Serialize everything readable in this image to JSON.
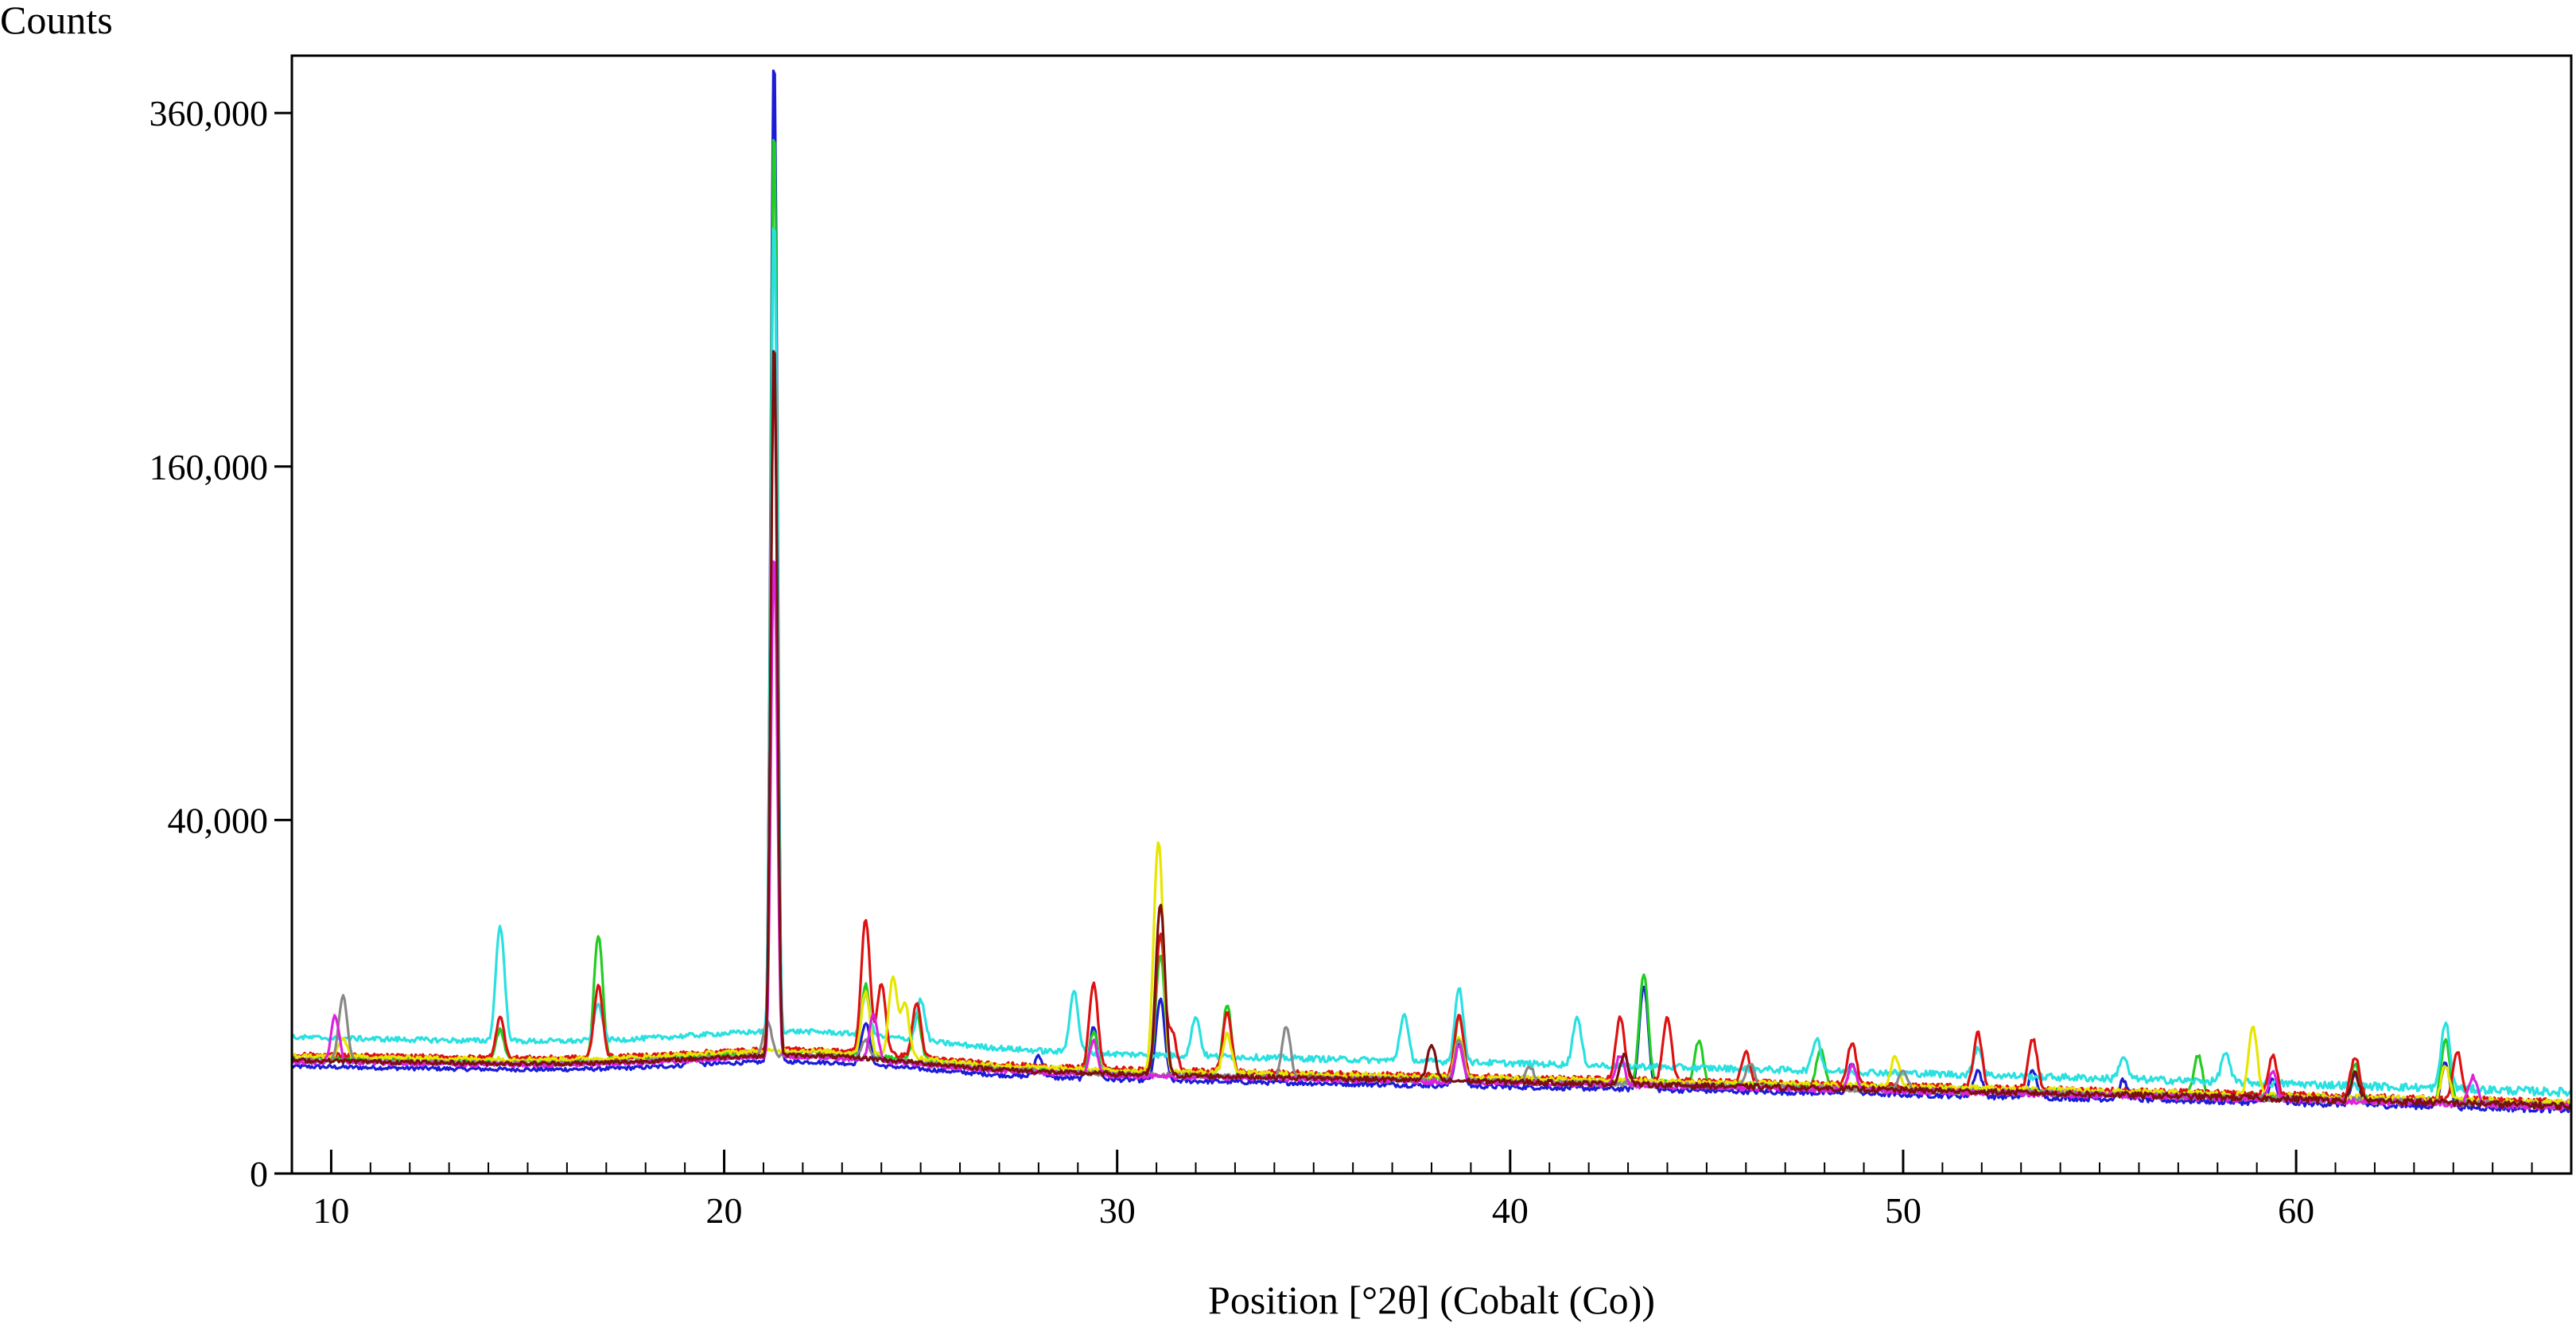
{
  "chart_data": {
    "type": "line",
    "title": "",
    "xlabel": "Position [°2θ] (Cobalt (Co))",
    "ylabel": "Counts",
    "xlim": [
      9,
      67
    ],
    "ylim": [
      0,
      400000
    ],
    "y_scale": "sqrt",
    "grid": false,
    "legend": "none",
    "x_ticks": [
      {
        "value": 10,
        "label": "10"
      },
      {
        "value": 20,
        "label": "20"
      },
      {
        "value": 30,
        "label": "30"
      },
      {
        "value": 40,
        "label": "40"
      },
      {
        "value": 50,
        "label": "50"
      },
      {
        "value": 60,
        "label": "60"
      }
    ],
    "y_ticks": [
      {
        "value": 0,
        "label": "0"
      },
      {
        "value": 40000,
        "label": "40,000"
      },
      {
        "value": 160000,
        "label": "160,000"
      },
      {
        "value": 360000,
        "label": "360,000"
      }
    ],
    "series": [
      {
        "color": "#1c1cd6",
        "baseline": 3400,
        "peaks": [
          [
            19.2,
            900
          ],
          [
            21.27,
            400000
          ],
          [
            23.6,
            3500
          ],
          [
            28.0,
            1500
          ],
          [
            29.4,
            4000
          ],
          [
            31.1,
            7000
          ],
          [
            38.7,
            3000
          ],
          [
            43.4,
            9000
          ],
          [
            48.7,
            1800
          ],
          [
            51.9,
            1500
          ],
          [
            53.3,
            1500
          ],
          [
            55.6,
            1000
          ],
          [
            59.4,
            1200
          ],
          [
            61.5,
            1500
          ],
          [
            63.8,
            2500
          ]
        ]
      },
      {
        "color": "#22cc22",
        "baseline": 4000,
        "peaks": [
          [
            14.3,
            2500
          ],
          [
            16.8,
            14000
          ],
          [
            21.27,
            350000
          ],
          [
            23.6,
            7000
          ],
          [
            24.9,
            4000
          ],
          [
            29.4,
            3000
          ],
          [
            31.1,
            12000
          ],
          [
            32.8,
            6000
          ],
          [
            38.7,
            5000
          ],
          [
            43.4,
            10000
          ],
          [
            44.8,
            3000
          ],
          [
            47.9,
            2500
          ],
          [
            57.5,
            2500
          ],
          [
            61.5,
            2000
          ],
          [
            63.8,
            4000
          ]
        ]
      },
      {
        "color": "#2ae0e0",
        "baseline": 5500,
        "peaks": [
          [
            14.3,
            14000
          ],
          [
            16.8,
            3500
          ],
          [
            21.27,
            290000
          ],
          [
            23.6,
            4000
          ],
          [
            25.0,
            4000
          ],
          [
            28.9,
            6000
          ],
          [
            32.0,
            3500
          ],
          [
            37.3,
            4000
          ],
          [
            38.7,
            7000
          ],
          [
            41.7,
            4000
          ],
          [
            47.8,
            2500
          ],
          [
            51.9,
            2000
          ],
          [
            55.6,
            1500
          ],
          [
            58.2,
            2000
          ],
          [
            63.8,
            5000
          ]
        ]
      },
      {
        "color": "#dd1111",
        "baseline": 4200,
        "peaks": [
          [
            14.3,
            3500
          ],
          [
            16.8,
            7000
          ],
          [
            21.27,
            210000
          ],
          [
            23.6,
            16000
          ],
          [
            24.0,
            7000
          ],
          [
            24.9,
            5000
          ],
          [
            29.4,
            8000
          ],
          [
            31.1,
            15000
          ],
          [
            31.4,
            3000
          ],
          [
            32.8,
            5000
          ],
          [
            38.7,
            5000
          ],
          [
            42.8,
            5000
          ],
          [
            44.0,
            5000
          ],
          [
            46.0,
            2000
          ],
          [
            48.7,
            3000
          ],
          [
            51.9,
            4000
          ],
          [
            53.3,
            3500
          ],
          [
            59.4,
            2500
          ],
          [
            61.5,
            2500
          ],
          [
            64.1,
            3000
          ]
        ]
      },
      {
        "color": "#e6e600",
        "baseline": 4100,
        "peaks": [
          [
            10.3,
            1500
          ],
          [
            23.6,
            6000
          ],
          [
            24.3,
            8000
          ],
          [
            24.6,
            5000
          ],
          [
            31.05,
            32000
          ],
          [
            32.8,
            3000
          ],
          [
            38.7,
            3000
          ],
          [
            49.8,
            2000
          ],
          [
            58.9,
            5000
          ],
          [
            63.8,
            2000
          ]
        ]
      },
      {
        "color": "#888888",
        "baseline": 3800,
        "peaks": [
          [
            10.3,
            6000
          ],
          [
            21.1,
            3000
          ],
          [
            23.6,
            1500
          ],
          [
            34.3,
            4000
          ],
          [
            38.7,
            3000
          ],
          [
            40.5,
            1000
          ],
          [
            46.1,
            1500
          ],
          [
            50.0,
            1200
          ]
        ]
      },
      {
        "color": "#dd22dd",
        "baseline": 3700,
        "peaks": [
          [
            10.1,
            4000
          ],
          [
            21.27,
            120000
          ],
          [
            23.8,
            4000
          ],
          [
            29.4,
            2500
          ],
          [
            38.7,
            2500
          ],
          [
            42.8,
            2000
          ],
          [
            48.7,
            1500
          ],
          [
            59.4,
            1500
          ],
          [
            64.5,
            1500
          ]
        ]
      },
      {
        "color": "#7a1010",
        "baseline": 3800,
        "peaks": [
          [
            21.27,
            220000
          ],
          [
            31.1,
            20000
          ],
          [
            38.0,
            2500
          ],
          [
            42.9,
            2000
          ],
          [
            61.5,
            1500
          ]
        ]
      }
    ]
  }
}
